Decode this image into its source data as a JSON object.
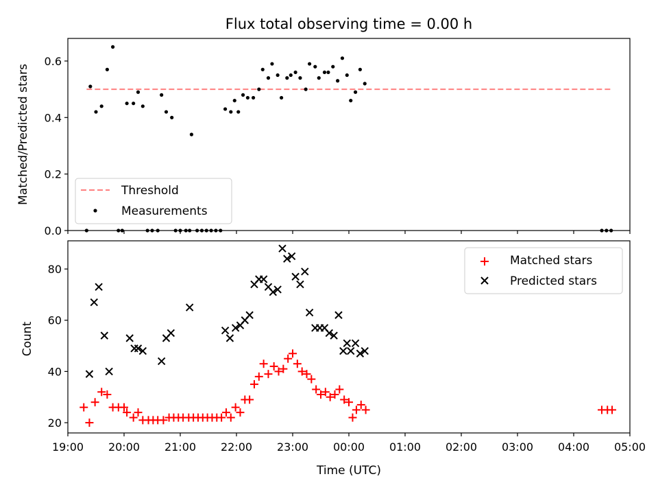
{
  "title": "Flux total observing time = 0.00 h",
  "chart_data": [
    {
      "type": "scatter",
      "panel": "top",
      "ylabel": "Matched/Predicted stars",
      "xlim": [
        "19:00",
        "05:00"
      ],
      "ylim": [
        0,
        0.68
      ],
      "yticks": [
        0.0,
        0.2,
        0.4,
        0.6
      ],
      "ytick_labels": [
        "0.0",
        "0.2",
        "0.4",
        "0.6"
      ],
      "legend_position": "lower-left",
      "threshold": {
        "name": "Threshold",
        "value": 0.5,
        "x_start": "19:20",
        "x_end": "04:40",
        "color": "#ff7f7f"
      },
      "measurements": {
        "name": "Measurements",
        "color": "#000000",
        "points": [
          [
            "19:20",
            0.0
          ],
          [
            "19:24",
            0.51
          ],
          [
            "19:30",
            0.42
          ],
          [
            "19:36",
            0.44
          ],
          [
            "19:42",
            0.57
          ],
          [
            "19:48",
            0.65
          ],
          [
            "19:54",
            0.0
          ],
          [
            "19:58",
            0.0
          ],
          [
            "20:03",
            0.45
          ],
          [
            "20:10",
            0.45
          ],
          [
            "20:15",
            0.49
          ],
          [
            "20:20",
            0.44
          ],
          [
            "20:25",
            0.0
          ],
          [
            "20:30",
            0.0
          ],
          [
            "20:36",
            0.0
          ],
          [
            "20:40",
            0.48
          ],
          [
            "20:45",
            0.42
          ],
          [
            "20:51",
            0.4
          ],
          [
            "20:55",
            0.0
          ],
          [
            "21:00",
            0.0
          ],
          [
            "21:06",
            0.0
          ],
          [
            "21:10",
            0.0
          ],
          [
            "21:12",
            0.34
          ],
          [
            "21:18",
            0.0
          ],
          [
            "21:23",
            0.0
          ],
          [
            "21:28",
            0.0
          ],
          [
            "21:33",
            0.0
          ],
          [
            "21:38",
            0.0
          ],
          [
            "21:43",
            0.0
          ],
          [
            "21:48",
            0.43
          ],
          [
            "21:54",
            0.42
          ],
          [
            "21:58",
            0.46
          ],
          [
            "22:02",
            0.42
          ],
          [
            "22:07",
            0.48
          ],
          [
            "22:12",
            0.47
          ],
          [
            "22:18",
            0.47
          ],
          [
            "22:24",
            0.5
          ],
          [
            "22:28",
            0.57
          ],
          [
            "22:34",
            0.54
          ],
          [
            "22:38",
            0.59
          ],
          [
            "22:44",
            0.55
          ],
          [
            "22:48",
            0.47
          ],
          [
            "22:54",
            0.54
          ],
          [
            "22:58",
            0.55
          ],
          [
            "23:03",
            0.56
          ],
          [
            "23:08",
            0.54
          ],
          [
            "23:14",
            0.5
          ],
          [
            "23:18",
            0.59
          ],
          [
            "23:24",
            0.58
          ],
          [
            "23:28",
            0.54
          ],
          [
            "23:34",
            0.56
          ],
          [
            "23:38",
            0.56
          ],
          [
            "23:43",
            0.58
          ],
          [
            "23:48",
            0.53
          ],
          [
            "23:53",
            0.61
          ],
          [
            "23:58",
            0.55
          ],
          [
            "00:02",
            0.46
          ],
          [
            "00:07",
            0.49
          ],
          [
            "00:12",
            0.57
          ],
          [
            "00:17",
            0.52
          ],
          [
            "04:30",
            0.0
          ],
          [
            "04:35",
            0.0
          ],
          [
            "04:40",
            0.0
          ]
        ]
      }
    },
    {
      "type": "scatter",
      "panel": "bottom",
      "xlabel": "Time (UTC)",
      "ylabel": "Count",
      "xlim": [
        "19:00",
        "05:00"
      ],
      "ylim": [
        16,
        91
      ],
      "xticks": [
        "19:00",
        "20:00",
        "21:00",
        "22:00",
        "23:00",
        "00:00",
        "01:00",
        "02:00",
        "03:00",
        "04:00",
        "05:00"
      ],
      "yticks": [
        20,
        40,
        60,
        80
      ],
      "ytick_labels": [
        "20",
        "40",
        "60",
        "80"
      ],
      "legend_position": "upper-right",
      "series": [
        {
          "name": "Matched stars",
          "marker": "+",
          "color": "#ff0000",
          "points": [
            [
              "19:17",
              26
            ],
            [
              "19:23",
              20
            ],
            [
              "19:29",
              28
            ],
            [
              "19:36",
              32
            ],
            [
              "19:42",
              31
            ],
            [
              "19:48",
              26
            ],
            [
              "19:54",
              26
            ],
            [
              "20:00",
              26
            ],
            [
              "20:03",
              24
            ],
            [
              "20:10",
              22
            ],
            [
              "20:15",
              24
            ],
            [
              "20:20",
              21
            ],
            [
              "20:26",
              21
            ],
            [
              "20:31",
              21
            ],
            [
              "20:36",
              21
            ],
            [
              "20:42",
              21
            ],
            [
              "20:48",
              22
            ],
            [
              "20:53",
              22
            ],
            [
              "20:58",
              22
            ],
            [
              "21:03",
              22
            ],
            [
              "21:09",
              22
            ],
            [
              "21:14",
              22
            ],
            [
              "21:19",
              22
            ],
            [
              "21:24",
              22
            ],
            [
              "21:29",
              22
            ],
            [
              "21:34",
              22
            ],
            [
              "21:39",
              22
            ],
            [
              "21:44",
              22
            ],
            [
              "21:49",
              24
            ],
            [
              "21:54",
              22
            ],
            [
              "21:59",
              26
            ],
            [
              "22:04",
              24
            ],
            [
              "22:09",
              29
            ],
            [
              "22:14",
              29
            ],
            [
              "22:19",
              35
            ],
            [
              "22:24",
              38
            ],
            [
              "22:29",
              43
            ],
            [
              "22:34",
              39
            ],
            [
              "22:40",
              42
            ],
            [
              "22:45",
              40
            ],
            [
              "22:50",
              41
            ],
            [
              "22:55",
              45
            ],
            [
              "23:00",
              47
            ],
            [
              "23:05",
              43
            ],
            [
              "23:10",
              40
            ],
            [
              "23:15",
              39
            ],
            [
              "23:20",
              37
            ],
            [
              "23:25",
              33
            ],
            [
              "23:30",
              31
            ],
            [
              "23:35",
              32
            ],
            [
              "23:40",
              30
            ],
            [
              "23:45",
              31
            ],
            [
              "23:50",
              33
            ],
            [
              "23:55",
              29
            ],
            [
              "00:00",
              28
            ],
            [
              "00:04",
              22
            ],
            [
              "00:08",
              25
            ],
            [
              "00:13",
              27
            ],
            [
              "00:18",
              25
            ],
            [
              "04:30",
              25
            ],
            [
              "04:36",
              25
            ],
            [
              "04:41",
              25
            ]
          ]
        },
        {
          "name": "Predicted stars",
          "marker": "x",
          "color": "#000000",
          "points": [
            [
              "19:23",
              39
            ],
            [
              "19:28",
              67
            ],
            [
              "19:33",
              73
            ],
            [
              "19:39",
              54
            ],
            [
              "19:44",
              40
            ],
            [
              "20:06",
              53
            ],
            [
              "20:11",
              49
            ],
            [
              "20:15",
              49
            ],
            [
              "20:20",
              48
            ],
            [
              "20:40",
              44
            ],
            [
              "20:45",
              53
            ],
            [
              "20:50",
              55
            ],
            [
              "21:10",
              65
            ],
            [
              "21:48",
              56
            ],
            [
              "21:53",
              53
            ],
            [
              "21:59",
              57
            ],
            [
              "22:04",
              58
            ],
            [
              "22:09",
              60
            ],
            [
              "22:14",
              62
            ],
            [
              "22:19",
              74
            ],
            [
              "22:24",
              76
            ],
            [
              "22:29",
              76
            ],
            [
              "22:34",
              73
            ],
            [
              "22:39",
              71
            ],
            [
              "22:44",
              72
            ],
            [
              "22:49",
              88
            ],
            [
              "22:54",
              84
            ],
            [
              "22:59",
              85
            ],
            [
              "23:03",
              77
            ],
            [
              "23:08",
              74
            ],
            [
              "23:13",
              79
            ],
            [
              "23:18",
              63
            ],
            [
              "23:24",
              57
            ],
            [
              "23:29",
              57
            ],
            [
              "23:34",
              57
            ],
            [
              "23:39",
              55
            ],
            [
              "23:44",
              54
            ],
            [
              "23:49",
              62
            ],
            [
              "23:54",
              48
            ],
            [
              "23:58",
              51
            ],
            [
              "00:02",
              48
            ],
            [
              "00:07",
              51
            ],
            [
              "00:12",
              47
            ],
            [
              "00:17",
              48
            ]
          ]
        }
      ]
    }
  ]
}
